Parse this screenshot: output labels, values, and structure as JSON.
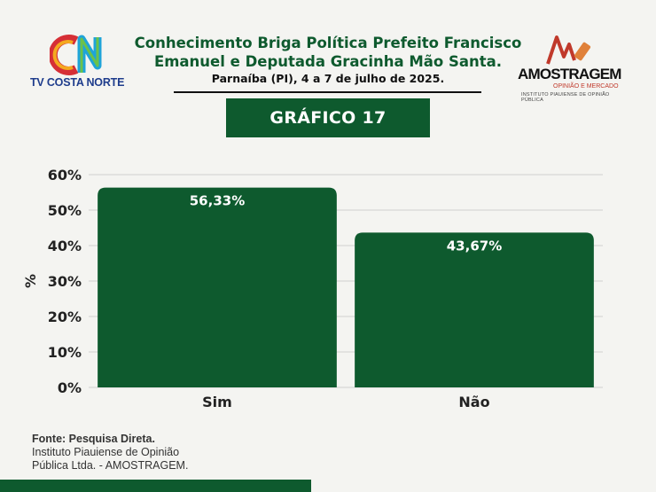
{
  "header": {
    "title_line1": "Conhecimento Briga Política Prefeito Francisco",
    "title_line2": "Emanuel e Deputada Gracinha Mão Santa.",
    "subtitle": "Parnaíba (PI), 4 a 7 de julho de 2025.",
    "banner": "GRÁFICO 17"
  },
  "logos": {
    "left_brand": "TV COSTA NORTE",
    "right_brand": "AMOSTRAGEM",
    "right_tagline": "OPINIÃO E MERCADO",
    "right_institute": "INSTITUTO PIAUIENSE DE OPINIÃO PÚBLICA"
  },
  "source": {
    "label": "Fonte: Pesquisa Direta.",
    "line1": "Instituto Piauiense de Opinião",
    "line2": "Pública Ltda. - AMOSTRAGEM."
  },
  "colors": {
    "bar": "#0e5a2e",
    "accent": "#0e5a2e",
    "grid": "#cfcfcf"
  },
  "chart_data": {
    "type": "bar",
    "categories": [
      "Sim",
      "Não"
    ],
    "values": [
      56.33,
      43.67
    ],
    "value_labels": [
      "56,33%",
      "43,67%"
    ],
    "ylabel": "%",
    "ylim": [
      0,
      60
    ],
    "yticks": [
      0,
      10,
      20,
      30,
      40,
      50,
      60
    ],
    "ytick_labels": [
      "0%",
      "10%",
      "20%",
      "30%",
      "40%",
      "50%",
      "60%"
    ],
    "grid": true
  }
}
